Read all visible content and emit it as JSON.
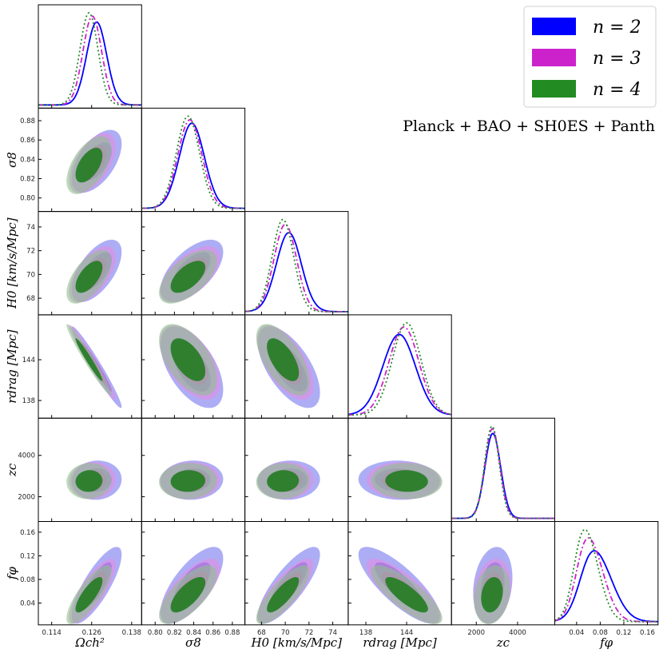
{
  "chart_data": {
    "type": "triangle",
    "title": "",
    "datasets_label": "Planck + BAO + SH0ES + Panth",
    "params": [
      {
        "label": "Ωch²",
        "xticks": [
          "0.114",
          "0.126",
          "0.138"
        ],
        "yticks": [],
        "lim": [
          0.11,
          0.141
        ],
        "tick_vals": [
          0.114,
          0.126,
          0.138
        ]
      },
      {
        "label": "σ8",
        "xticks": [
          "0.80",
          "0.82",
          "0.84",
          "0.86",
          "0.88"
        ],
        "yticks": [
          "0.80",
          "0.82",
          "0.84",
          "0.86",
          "0.88"
        ],
        "lim": [
          0.786,
          0.893
        ],
        "tick_vals": [
          0.8,
          0.82,
          0.84,
          0.86,
          0.88
        ]
      },
      {
        "label": "H0 [km/s/Mpc]",
        "xticks": [
          "68",
          "70",
          "72",
          "74"
        ],
        "yticks": [
          "68",
          "70",
          "72",
          "74"
        ],
        "lim": [
          66.6,
          75.3
        ],
        "tick_vals": [
          68,
          70,
          72,
          74
        ]
      },
      {
        "label": "rdrag [Mpc]",
        "xticks": [
          "138",
          "144"
        ],
        "yticks": [
          "138",
          "144"
        ],
        "lim": [
          135.4,
          150.6
        ],
        "tick_vals": [
          138,
          144
        ]
      },
      {
        "label": "zc",
        "xticks": [
          "2000",
          "4000"
        ],
        "yticks": [
          "2000",
          "4000"
        ],
        "lim": [
          800,
          5800
        ],
        "tick_vals": [
          2000,
          4000
        ]
      },
      {
        "label": "fφ",
        "xticks": [
          "0.04",
          "0.08",
          "0.12",
          "0.16"
        ],
        "yticks": [
          "0.04",
          "0.08",
          "0.12",
          "0.16"
        ],
        "lim": [
          0.003,
          0.178
        ],
        "tick_vals": [
          0.04,
          0.08,
          0.12,
          0.16
        ]
      }
    ],
    "series": [
      {
        "name": "n = 2",
        "color": "#0000ff",
        "fill_outer": "#7777ee",
        "fill_inner": "#5555dd",
        "line": "solid",
        "means": [
          0.1275,
          0.838,
          70.3,
          142.9,
          2800,
          0.07
        ],
        "sds": [
          0.003,
          0.013,
          1.05,
          2.4,
          380,
          0.026
        ]
      },
      {
        "name": "n = 3",
        "color": "#cc22cc",
        "fill_outer": "#e28de2",
        "fill_inner": "#d060d0",
        "line": "dashdot",
        "means": [
          0.1262,
          0.836,
          70.0,
          143.6,
          2780,
          0.06
        ],
        "sds": [
          0.0028,
          0.0125,
          0.95,
          2.2,
          360,
          0.022
        ]
      },
      {
        "name": "n = 4",
        "color": "#228b22",
        "fill_outer": "#8fbf8f",
        "fill_inner": "#1a7a1a",
        "line": "dotted",
        "means": [
          0.1252,
          0.834,
          69.8,
          144.0,
          2760,
          0.054
        ],
        "sds": [
          0.0027,
          0.012,
          0.9,
          2.1,
          350,
          0.02
        ]
      }
    ],
    "legend_position": "top-right"
  },
  "legend": {
    "items": [
      {
        "label": "n = 2",
        "color": "#0000ff"
      },
      {
        "label": "n = 3",
        "color": "#cc22cc"
      },
      {
        "label": "n = 4",
        "color": "#228b22"
      }
    ]
  }
}
